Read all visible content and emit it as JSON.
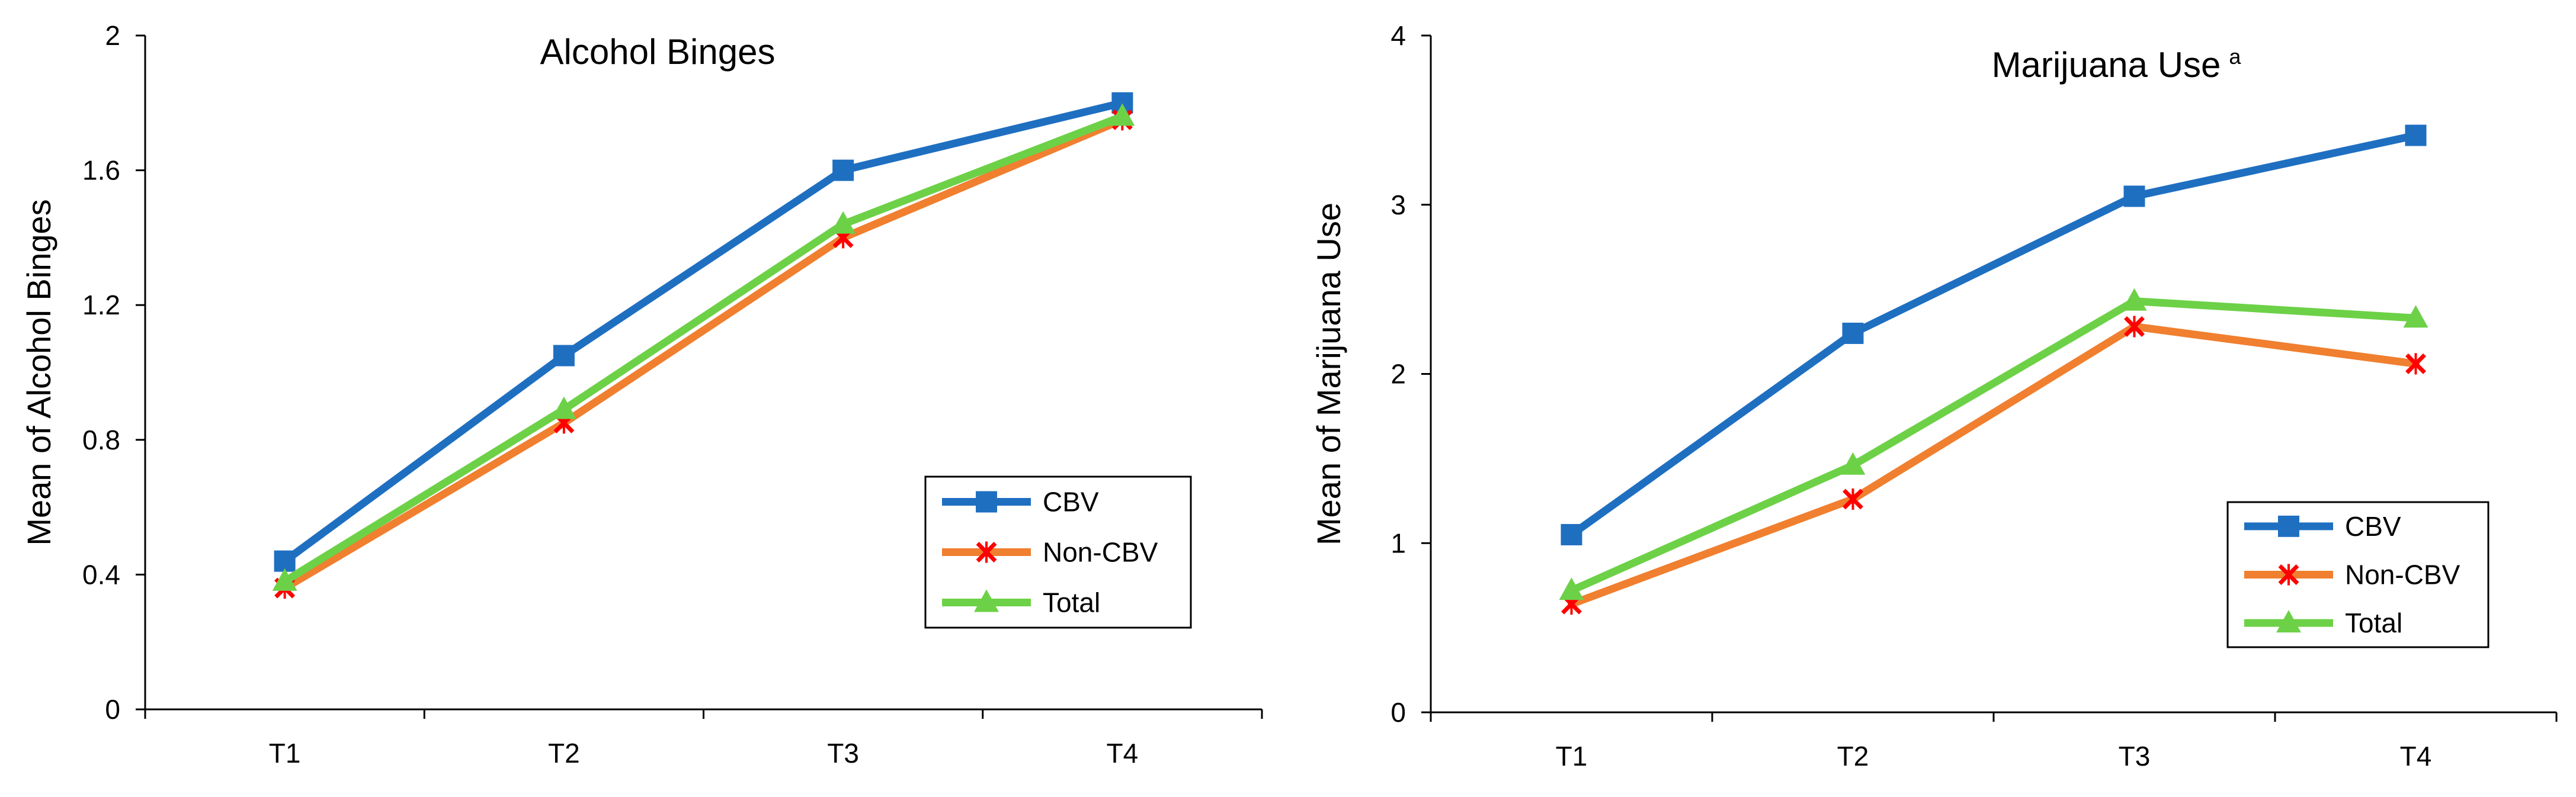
{
  "chart_data": [
    {
      "type": "line",
      "title": "Alcohol Binges",
      "title_superscript": "",
      "xlabel": "",
      "ylabel": "Mean of Alcohol Binges",
      "categories": [
        "T1",
        "T2",
        "T3",
        "T4"
      ],
      "ylim": [
        0,
        2
      ],
      "yticks": [
        0,
        0.4,
        0.8,
        1.2,
        1.6,
        2
      ],
      "ytick_labels": [
        "0",
        "0.4",
        "0.8",
        "1.2",
        "1.6",
        "2"
      ],
      "grid": false,
      "legend_position": "bottom-right",
      "series": [
        {
          "name": "CBV",
          "color": "#1f6fc1",
          "marker": "square",
          "values": [
            0.44,
            1.05,
            1.6,
            1.8
          ]
        },
        {
          "name": "Non-CBV",
          "color": "#f07f2f",
          "marker": "x",
          "marker_color": "#ff0000",
          "values": [
            0.36,
            0.85,
            1.4,
            1.75
          ]
        },
        {
          "name": "Total",
          "color": "#6dd147",
          "marker": "triangle",
          "values": [
            0.38,
            0.89,
            1.44,
            1.76
          ]
        }
      ]
    },
    {
      "type": "line",
      "title": "Marijuana Use",
      "title_superscript": "a",
      "xlabel": "",
      "ylabel": "Mean of Marijuana Use",
      "categories": [
        "T1",
        "T2",
        "T3",
        "T4"
      ],
      "ylim": [
        0,
        4
      ],
      "yticks": [
        0,
        1,
        2,
        3,
        4
      ],
      "ytick_labels": [
        "0",
        "1",
        "2",
        "3",
        "4"
      ],
      "grid": false,
      "legend_position": "bottom-right",
      "series": [
        {
          "name": "CBV",
          "color": "#1f6fc1",
          "marker": "square",
          "values": [
            1.05,
            2.24,
            3.05,
            3.41
          ]
        },
        {
          "name": "Non-CBV",
          "color": "#f07f2f",
          "marker": "x",
          "marker_color": "#ff0000",
          "values": [
            0.64,
            1.26,
            2.28,
            2.06
          ]
        },
        {
          "name": "Total",
          "color": "#6dd147",
          "marker": "triangle",
          "values": [
            0.72,
            1.46,
            2.43,
            2.33
          ]
        }
      ]
    }
  ]
}
